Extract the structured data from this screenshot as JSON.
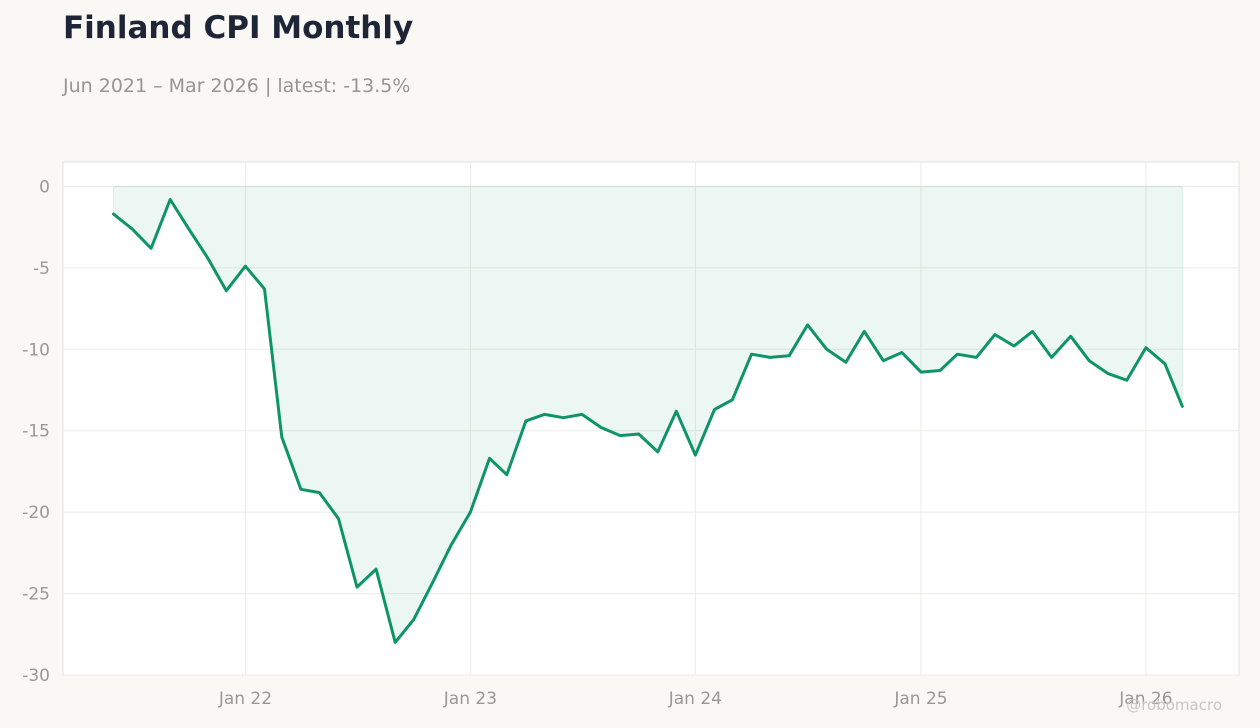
{
  "title": "Finland CPI Monthly",
  "subtitle": "Jun 2021 – Mar 2026 | latest: -13.5%",
  "watermark": "@robomacro",
  "colors": {
    "line": "#0e9467",
    "fill": "#0e9467",
    "background": "#f9f8f5",
    "plot_background": "#ffffff",
    "grid": "#ecebe8"
  },
  "chart_data": {
    "type": "area",
    "title": "Finland CPI Monthly",
    "subtitle": "Jun 2021 – Mar 2026 | latest: -13.5%",
    "xlabel": "",
    "ylabel": "",
    "ylim": [
      -30,
      1.5
    ],
    "xlim": [
      "2021-03-11",
      "2026-06-01"
    ],
    "y_ticks": [
      0,
      -5,
      -10,
      -15,
      -20,
      -25,
      -30
    ],
    "x_ticks": [
      {
        "date": "2022-01-01",
        "label": "Jan 22"
      },
      {
        "date": "2023-01-01",
        "label": "Jan 23"
      },
      {
        "date": "2024-01-01",
        "label": "Jan 24"
      },
      {
        "date": "2025-01-01",
        "label": "Jan 25"
      },
      {
        "date": "2026-01-01",
        "label": "Jan 26"
      }
    ],
    "grid": true,
    "legend": "none",
    "x": [
      "2021-06",
      "2021-07",
      "2021-08",
      "2021-09",
      "2021-10",
      "2021-11",
      "2021-12",
      "2022-01",
      "2022-02",
      "2022-03",
      "2022-04",
      "2022-05",
      "2022-06",
      "2022-07",
      "2022-08",
      "2022-09",
      "2022-10",
      "2022-11",
      "2022-12",
      "2023-01",
      "2023-02",
      "2023-03",
      "2023-04",
      "2023-05",
      "2023-06",
      "2023-07",
      "2023-08",
      "2023-09",
      "2023-10",
      "2023-11",
      "2023-12",
      "2024-01",
      "2024-02",
      "2024-03",
      "2024-04",
      "2024-05",
      "2024-06",
      "2024-07",
      "2024-08",
      "2024-09",
      "2024-10",
      "2024-11",
      "2024-12",
      "2025-01",
      "2025-02",
      "2025-03",
      "2025-04",
      "2025-05",
      "2025-06",
      "2025-07",
      "2025-08",
      "2025-09",
      "2025-10",
      "2025-11",
      "2025-12",
      "2026-01",
      "2026-02",
      "2026-03"
    ],
    "values": [
      -1.7,
      -2.6,
      -3.8,
      -0.8,
      -2.6,
      -4.4,
      -6.4,
      -4.9,
      -6.3,
      -15.4,
      -18.6,
      -18.8,
      -20.4,
      -24.6,
      -23.5,
      -28.0,
      -26.6,
      -24.3,
      -22.0,
      -20.0,
      -16.7,
      -17.7,
      -14.4,
      -14.0,
      -14.2,
      -14.0,
      -14.8,
      -15.3,
      -15.2,
      -16.3,
      -13.8,
      -16.5,
      -13.7,
      -13.1,
      -10.3,
      -10.5,
      -10.4,
      -8.5,
      -10.0,
      -10.8,
      -8.9,
      -10.7,
      -10.2,
      -11.4,
      -11.3,
      -10.3,
      -10.5,
      -9.1,
      -9.8,
      -8.9,
      -10.5,
      -9.2,
      -10.7,
      -11.5,
      -11.9,
      -9.9,
      -10.9,
      -13.5
    ]
  }
}
